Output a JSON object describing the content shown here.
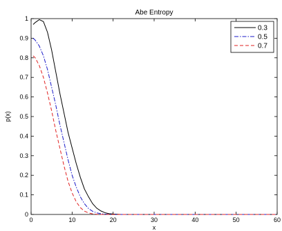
{
  "chart_data": {
    "type": "line",
    "title": "Abe Entropy",
    "xlabel": "x",
    "ylabel": "p(x)",
    "xlim": [
      0,
      60
    ],
    "ylim": [
      0,
      1
    ],
    "xticks": [
      0,
      10,
      20,
      30,
      40,
      50,
      60
    ],
    "yticks": [
      0,
      0.1,
      0.2,
      0.3,
      0.4,
      0.5,
      0.6,
      0.7,
      0.8,
      0.9,
      1
    ],
    "grid": false,
    "legend_position": "top-right",
    "series": [
      {
        "name": "0.3",
        "color": "#000000",
        "dash": "solid",
        "x": [
          0.5,
          1,
          2,
          3,
          4,
          5,
          6,
          7,
          8,
          9,
          10,
          11,
          12,
          13,
          14,
          15,
          16,
          17,
          18,
          19,
          20,
          22,
          25,
          30,
          40,
          50,
          60
        ],
        "y": [
          0.97,
          0.98,
          0.995,
          0.985,
          0.93,
          0.84,
          0.73,
          0.62,
          0.52,
          0.42,
          0.34,
          0.26,
          0.19,
          0.13,
          0.09,
          0.055,
          0.032,
          0.018,
          0.009,
          0.004,
          0.002,
          0,
          0,
          0,
          0,
          0,
          0
        ]
      },
      {
        "name": "0.5",
        "color": "#1a1ac8",
        "dash": "dashdot",
        "x": [
          0.5,
          1,
          2,
          3,
          4,
          5,
          6,
          7,
          8,
          9,
          10,
          11,
          12,
          13,
          14,
          15,
          16,
          17,
          18,
          19,
          20,
          22,
          25,
          30,
          40,
          50,
          60
        ],
        "y": [
          0.9,
          0.89,
          0.86,
          0.81,
          0.74,
          0.65,
          0.56,
          0.46,
          0.37,
          0.28,
          0.2,
          0.14,
          0.09,
          0.055,
          0.03,
          0.016,
          0.008,
          0.004,
          0.002,
          0.001,
          0,
          0,
          0,
          0,
          0,
          0,
          0
        ]
      },
      {
        "name": "0.7",
        "color": "#e02020",
        "dash": "dashed",
        "x": [
          0.5,
          1,
          2,
          3,
          4,
          5,
          6,
          7,
          8,
          9,
          10,
          11,
          12,
          13,
          14,
          15,
          16,
          17,
          18,
          20,
          22,
          25,
          30,
          40,
          50,
          60
        ],
        "y": [
          0.81,
          0.8,
          0.76,
          0.7,
          0.62,
          0.53,
          0.43,
          0.34,
          0.25,
          0.17,
          0.11,
          0.065,
          0.035,
          0.017,
          0.008,
          0.003,
          0.001,
          0,
          0,
          0,
          0,
          0,
          0,
          0,
          0,
          0
        ]
      }
    ]
  }
}
